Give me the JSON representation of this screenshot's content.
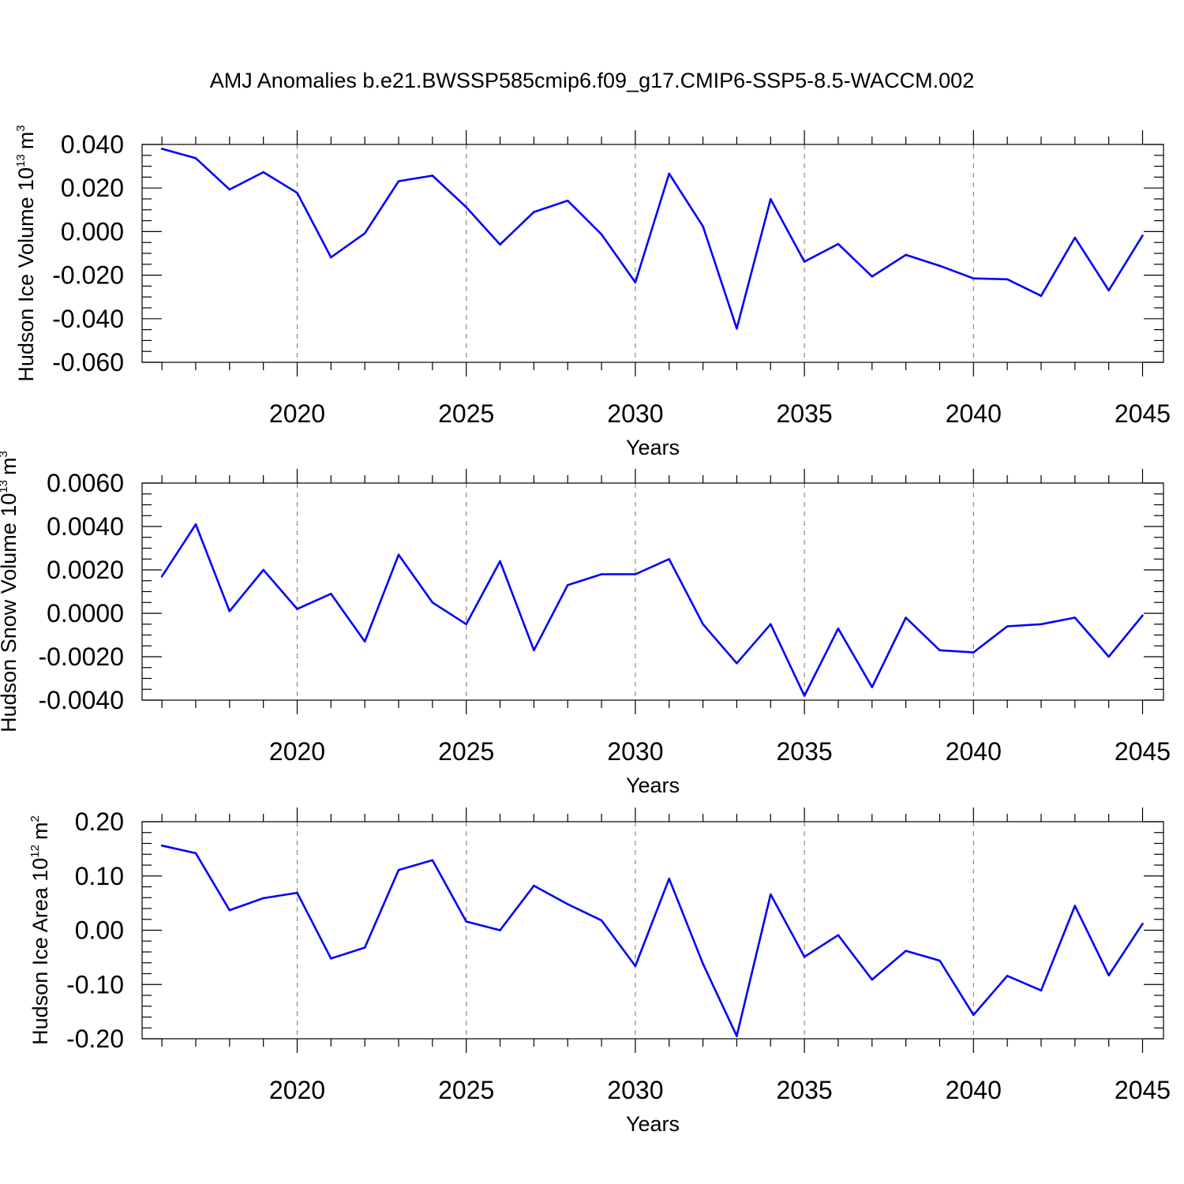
{
  "figure_title": "AMJ Anomalies b.e21.BWSSP585cmip6.f09_g17.CMIP6-SSP5-8.5-WACCM.002",
  "colors": {
    "line": "#0000ff",
    "axis": "#000000",
    "grid": "#888888",
    "background": "#ffffff"
  },
  "chart_data": [
    {
      "type": "line",
      "title": "AMJ Anomalies b.e21.BWSSP585cmip6.f09_g17.CMIP6-SSP5-8.5-WACCM.002",
      "ylabel": "Hudson Ice Volume",
      "ylabel_unit": "10",
      "ylabel_exp": "13",
      "ylabel_unit2": "m",
      "ylabel_exp2": "3",
      "xlabel": "Years",
      "xlim": [
        2015.6,
        2045
      ],
      "ylim": [
        -0.06,
        0.04
      ],
      "y_ticks": [
        -0.06,
        -0.04,
        -0.02,
        0.0,
        0.02,
        0.04
      ],
      "y_tick_labels": [
        "-0.060",
        "-0.040",
        "-0.020",
        "0.000",
        "0.020",
        "0.040"
      ],
      "y_minor_step": 0.005,
      "x_ticks": [
        2020,
        2025,
        2030,
        2035,
        2040,
        2045
      ],
      "x_tick_labels": [
        "2020",
        "2025",
        "2030",
        "2035",
        "2040",
        "2045"
      ],
      "x": [
        2016,
        2017,
        2018,
        2019,
        2020,
        2021,
        2022,
        2023,
        2024,
        2025,
        2026,
        2027,
        2028,
        2029,
        2030,
        2031,
        2032,
        2033,
        2034,
        2035,
        2036,
        2037,
        2038,
        2039,
        2040,
        2041,
        2042,
        2043,
        2044,
        2045
      ],
      "series": [
        {
          "name": "Hudson Ice Volume",
          "values": [
            0.038,
            0.0337,
            0.0193,
            0.0273,
            0.0178,
            -0.0118,
            -0.0008,
            0.0231,
            0.0257,
            0.0112,
            -0.0059,
            0.009,
            0.0142,
            -0.0013,
            -0.0233,
            0.0266,
            0.0024,
            -0.0445,
            0.0149,
            -0.0138,
            -0.0057,
            -0.0206,
            -0.0107,
            -0.0157,
            -0.0215,
            -0.0219,
            -0.0295,
            -0.0028,
            -0.027,
            -0.0018
          ]
        }
      ]
    },
    {
      "type": "line",
      "ylabel": "Hudson Snow Volume",
      "ylabel_unit": "10",
      "ylabel_exp": "13",
      "ylabel_unit2": "m",
      "ylabel_exp2": "3",
      "xlabel": "Years",
      "xlim": [
        2015.6,
        2045
      ],
      "ylim": [
        -0.004,
        0.006
      ],
      "y_ticks": [
        -0.004,
        -0.002,
        0.0,
        0.002,
        0.004,
        0.006
      ],
      "y_tick_labels": [
        "-0.0040",
        "-0.0020",
        "0.0000",
        "0.0020",
        "0.0040",
        "0.0060"
      ],
      "y_minor_step": 0.0005,
      "x_ticks": [
        2020,
        2025,
        2030,
        2035,
        2040,
        2045
      ],
      "x_tick_labels": [
        "2020",
        "2025",
        "2030",
        "2035",
        "2040",
        "2045"
      ],
      "x": [
        2016,
        2017,
        2018,
        2019,
        2020,
        2021,
        2022,
        2023,
        2024,
        2025,
        2026,
        2027,
        2028,
        2029,
        2030,
        2031,
        2032,
        2033,
        2034,
        2035,
        2036,
        2037,
        2038,
        2039,
        2040,
        2041,
        2042,
        2043,
        2044,
        2045
      ],
      "series": [
        {
          "name": "Hudson Snow Volume",
          "values": [
            0.0017,
            0.0041,
            0.0001,
            0.002,
            0.0002,
            0.0009,
            -0.0013,
            0.0027,
            0.0005,
            -0.0005,
            0.0024,
            -0.0017,
            0.0013,
            0.0018,
            0.0018,
            0.0025,
            -0.0005,
            -0.0023,
            -0.0005,
            -0.0038,
            -0.0007,
            -0.0034,
            -0.0002,
            -0.0017,
            -0.0018,
            -0.0006,
            -0.0005,
            -0.0002,
            -0.002,
            -0.0001
          ]
        }
      ]
    },
    {
      "type": "line",
      "ylabel": "Hudson Ice Area",
      "ylabel_unit": "10",
      "ylabel_exp": "12",
      "ylabel_unit2": "m",
      "ylabel_exp2": "2",
      "xlabel": "Years",
      "xlim": [
        2015.6,
        2045
      ],
      "ylim": [
        -0.2,
        0.2
      ],
      "y_ticks": [
        -0.2,
        -0.1,
        0.0,
        0.1,
        0.2
      ],
      "y_tick_labels": [
        "-0.20",
        "-0.10",
        "0.00",
        "0.10",
        "0.20"
      ],
      "y_minor_step": 0.02,
      "x_ticks": [
        2020,
        2025,
        2030,
        2035,
        2040,
        2045
      ],
      "x_tick_labels": [
        "2020",
        "2025",
        "2030",
        "2035",
        "2040",
        "2045"
      ],
      "x": [
        2016,
        2017,
        2018,
        2019,
        2020,
        2021,
        2022,
        2023,
        2024,
        2025,
        2026,
        2027,
        2028,
        2029,
        2030,
        2031,
        2032,
        2033,
        2034,
        2035,
        2036,
        2037,
        2038,
        2039,
        2040,
        2041,
        2042,
        2043,
        2044,
        2045
      ],
      "series": [
        {
          "name": "Hudson Ice Area",
          "values": [
            0.156,
            0.142,
            0.037,
            0.059,
            0.069,
            -0.052,
            -0.032,
            0.111,
            0.129,
            0.016,
            0.0,
            0.082,
            0.048,
            0.018,
            -0.066,
            0.095,
            -0.062,
            -0.195,
            0.066,
            -0.049,
            -0.009,
            -0.091,
            -0.038,
            -0.056,
            -0.156,
            -0.084,
            -0.111,
            0.045,
            -0.083,
            0.012
          ]
        }
      ]
    }
  ]
}
